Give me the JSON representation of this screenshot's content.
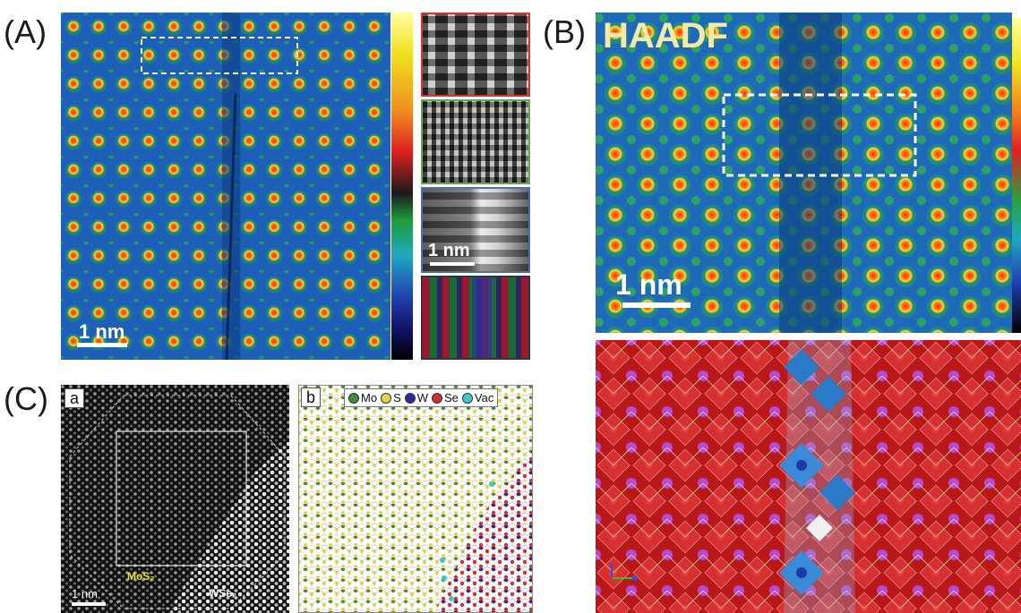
{
  "panels": {
    "a": {
      "label": "(A)",
      "scalebar_main": "1 nm",
      "scalebar_inset": "1 nm",
      "inset_frame_colors": [
        "#e0302a",
        "#6aa84f",
        "#4a6fb5",
        "#333333"
      ]
    },
    "b": {
      "label": "(B)",
      "title": "HAADF",
      "scalebar": "1 nm"
    },
    "c": {
      "label": "(C)",
      "sub_a": "a",
      "sub_b": "b",
      "scalebar": "1 nm",
      "region_left": "MoS₂",
      "region_right": "WSe₂",
      "legend": [
        {
          "name": "Mo",
          "color": "#3c8c3c"
        },
        {
          "name": "S",
          "color": "#e0d24a"
        },
        {
          "name": "W",
          "color": "#2a2a9a"
        },
        {
          "name": "Se",
          "color": "#d03030"
        },
        {
          "name": "Vac",
          "color": "#40c8c8"
        }
      ]
    }
  },
  "colors": {
    "atom_core": "#ff3010",
    "atom_halo": "#f5e040",
    "background_map": "#1b5fb0"
  }
}
